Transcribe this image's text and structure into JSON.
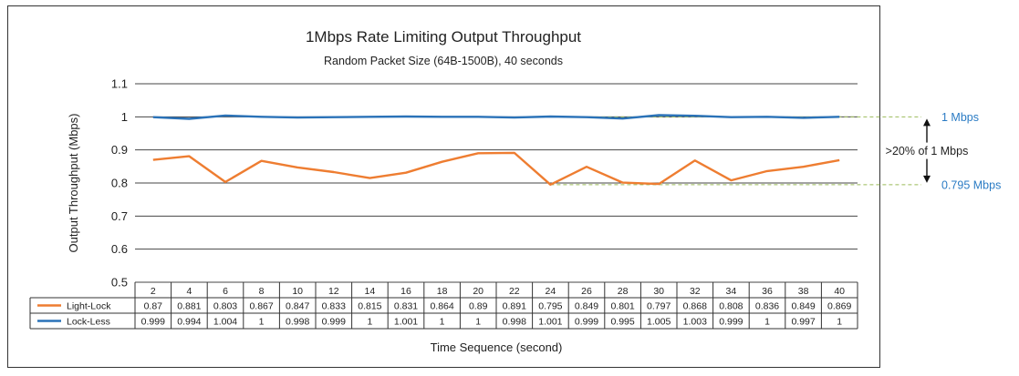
{
  "chart_data": {
    "type": "line",
    "title": "1Mbps Rate Limiting Output Throughput",
    "subtitle": "Random Packet Size (64B-1500B), 40 seconds",
    "xlabel": "Time Sequence (second)",
    "ylabel": "Output Throughput (Mbps)",
    "ylim": [
      0.5,
      1.1
    ],
    "yticks": [
      "0.5",
      "0.6",
      "0.7",
      "0.8",
      "0.9",
      "1",
      "1.1"
    ],
    "categories": [
      "2",
      "4",
      "6",
      "8",
      "10",
      "12",
      "14",
      "16",
      "18",
      "20",
      "22",
      "24",
      "26",
      "28",
      "30",
      "32",
      "34",
      "36",
      "38",
      "40"
    ],
    "series": [
      {
        "name": "Light-Lock",
        "color": "#ee7d31",
        "values": [
          0.87,
          0.881,
          0.803,
          0.867,
          0.847,
          0.833,
          0.815,
          0.831,
          0.864,
          0.89,
          0.891,
          0.795,
          0.849,
          0.801,
          0.797,
          0.868,
          0.808,
          0.836,
          0.849,
          0.869
        ],
        "labels": [
          "0.87",
          "0.881",
          "0.803",
          "0.867",
          "0.847",
          "0.833",
          "0.815",
          "0.831",
          "0.864",
          "0.89",
          "0.891",
          "0.795",
          "0.849",
          "0.801",
          "0.797",
          "0.868",
          "0.808",
          "0.836",
          "0.849",
          "0.869"
        ]
      },
      {
        "name": "Lock-Less",
        "color": "#2a72b8",
        "values": [
          0.999,
          0.994,
          1.004,
          1,
          0.998,
          0.999,
          1,
          1.001,
          1,
          1,
          0.998,
          1.001,
          0.999,
          0.995,
          1.005,
          1.003,
          0.999,
          1,
          0.997,
          1
        ],
        "labels": [
          "0.999",
          "0.994",
          "1.004",
          "1",
          "0.998",
          "0.999",
          "1",
          "1.001",
          "1",
          "1",
          "0.998",
          "1.001",
          "0.999",
          "0.995",
          "1.005",
          "1.003",
          "0.999",
          "1",
          "0.997",
          "1"
        ]
      }
    ],
    "annotations": {
      "upper_ref_value": 1,
      "lower_ref_value": 0.795,
      "upper_label": "1 Mbps",
      "lower_label": "0.795 Mbps",
      "gap_label": ">20% of 1 Mbps",
      "ref_line_color": "#9bbb59",
      "ref_line_start_category": "24"
    },
    "grid": true,
    "legend": "data-table"
  }
}
